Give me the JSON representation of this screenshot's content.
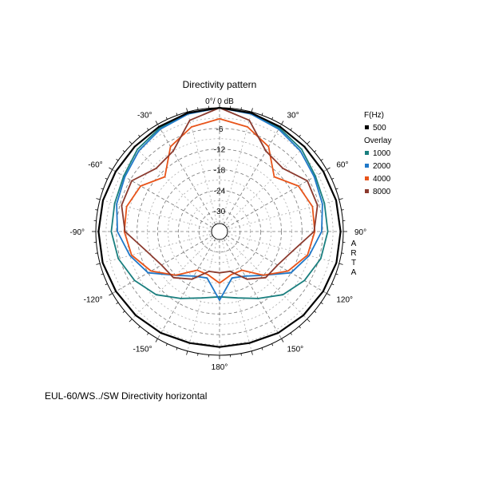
{
  "caption": "EUL-60/WS../SW Directivity horizontal",
  "chart_data": {
    "type": "polar",
    "title": "Directivity pattern",
    "top_label": "0°/ 0 dB",
    "brand": [
      "A",
      "R",
      "T",
      "A"
    ],
    "radial_unit": "dB",
    "radial_range": [
      -36,
      0
    ],
    "radial_ticks": [
      {
        "value": -6,
        "label": "-6"
      },
      {
        "value": -12,
        "label": "-12"
      },
      {
        "value": -18,
        "label": "-18"
      },
      {
        "value": -24,
        "label": "-24"
      },
      {
        "value": -30,
        "label": "-30"
      }
    ],
    "angle_ticks": [
      {
        "angle": 30,
        "label": "30°"
      },
      {
        "angle": 60,
        "label": "60°"
      },
      {
        "angle": 90,
        "label": "90°"
      },
      {
        "angle": 120,
        "label": "120°"
      },
      {
        "angle": 150,
        "label": "150°"
      },
      {
        "angle": 180,
        "label": "180°"
      },
      {
        "angle": -150,
        "label": "-150°"
      },
      {
        "angle": -120,
        "label": "-120°"
      },
      {
        "angle": -90,
        "label": "-90°"
      },
      {
        "angle": -60,
        "label": "-60°"
      },
      {
        "angle": -30,
        "label": "-30°"
      }
    ],
    "legend": {
      "header": "F(Hz)",
      "overlay_label": "Overlay",
      "position": "top-right"
    },
    "angles": [
      0,
      15,
      30,
      45,
      60,
      75,
      90,
      105,
      120,
      135,
      150,
      165,
      180,
      195,
      210,
      225,
      240,
      255,
      270,
      285,
      300,
      315,
      330,
      345
    ],
    "series": [
      {
        "name": "500",
        "color": "#000000",
        "group": "main",
        "values": [
          0,
          -0.3,
          -0.8,
          -1.1,
          -1.1,
          -0.9,
          -0.8,
          -0.8,
          -1.2,
          -1.5,
          -1.9,
          -2.4,
          -2.4,
          -2.4,
          -1.9,
          -1.5,
          -1.2,
          -0.8,
          -0.8,
          -0.9,
          -1.1,
          -1.1,
          -0.8,
          -0.3
        ]
      },
      {
        "name": "1000",
        "color": "#1a7f7f",
        "group": "overlay",
        "values": [
          0,
          -0.5,
          -1.2,
          -2.2,
          -3.8,
          -4.4,
          -4.5,
          -5.5,
          -7.5,
          -10,
          -13.5,
          -16,
          -17,
          -16,
          -13.5,
          -10,
          -7.5,
          -5.5,
          -4.5,
          -4.4,
          -3.8,
          -2.2,
          -1.2,
          -0.5
        ]
      },
      {
        "name": "2000",
        "color": "#1f78c8",
        "group": "overlay",
        "values": [
          0,
          -0.6,
          -1.6,
          -2.8,
          -4.2,
          -5,
          -6.3,
          -9,
          -12,
          -18,
          -21,
          -22,
          -16,
          -22,
          -21,
          -18,
          -12,
          -9,
          -6.3,
          -5,
          -4.2,
          -2.8,
          -1.6,
          -0.6
        ]
      },
      {
        "name": "4000",
        "color": "#e8541a",
        "group": "overlay",
        "values": [
          -3.2,
          -4.5,
          -7.5,
          -13.5,
          -9.5,
          -8,
          -8.3,
          -9.5,
          -13,
          -18,
          -23,
          -23,
          -21,
          -23,
          -23,
          -18,
          -13,
          -9.5,
          -8.3,
          -8,
          -9.5,
          -13.5,
          -7.5,
          -4.5
        ]
      },
      {
        "name": "8000",
        "color": "#8b3a2e",
        "group": "overlay",
        "values": [
          0,
          -2.5,
          -9,
          -10,
          -6.5,
          -6.5,
          -8.5,
          -14,
          -16.5,
          -17,
          -20,
          -24,
          -24,
          -24,
          -20,
          -17,
          -16.5,
          -14,
          -8.5,
          -6.5,
          -6.5,
          -10,
          -9,
          -2.5
        ]
      }
    ],
    "grid": true
  }
}
